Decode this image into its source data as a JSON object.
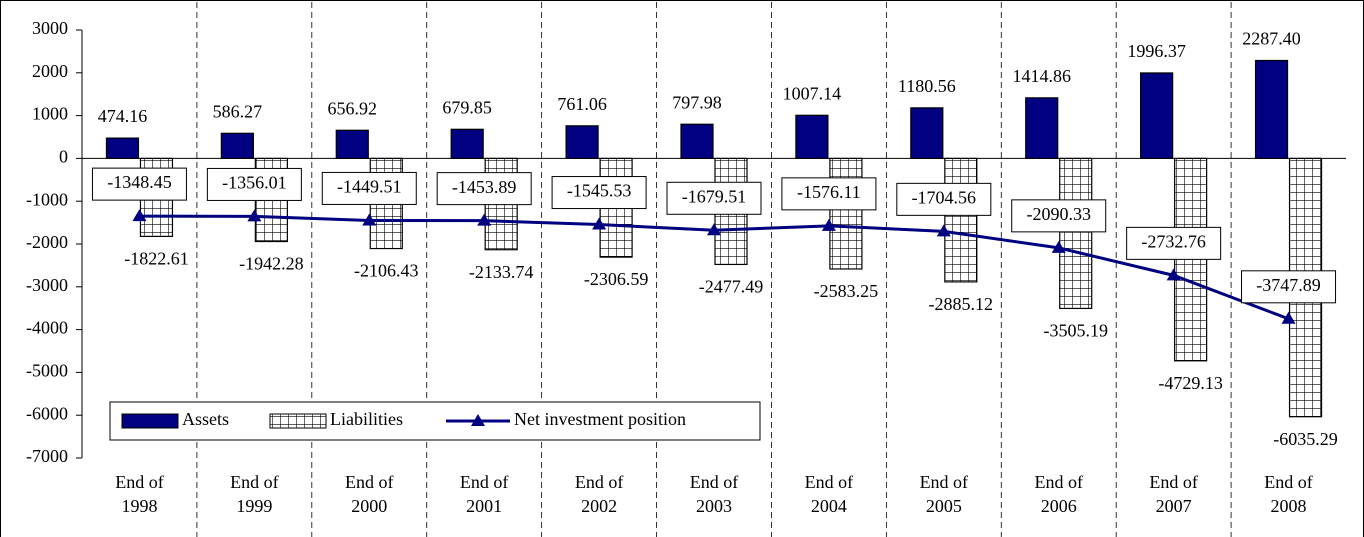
{
  "chart_data": {
    "type": "bar-line",
    "categories": [
      "End of 1998",
      "End of 1999",
      "End of 2000",
      "End of 2001",
      "End of 2002",
      "End of 2003",
      "End of 2004",
      "End of 2005",
      "End of 2006",
      "End of 2007",
      "End of 2008"
    ],
    "series": [
      {
        "name": "Assets",
        "type": "bar",
        "color": "#000080",
        "values": [
          474.16,
          586.27,
          656.92,
          679.85,
          761.06,
          797.98,
          1007.14,
          1180.56,
          1414.86,
          1996.37,
          2287.4
        ],
        "value_labels": [
          "474.16",
          "586.27",
          "656.92",
          "679.85",
          "761.06",
          "797.98",
          "1007.14",
          "1180.56",
          "1414.86",
          "1996.37",
          "2287.40"
        ]
      },
      {
        "name": "Liabilities",
        "type": "bar",
        "color": "#ffffff",
        "values": [
          -1822.61,
          -1942.28,
          -2106.43,
          -2133.74,
          -2306.59,
          -2477.49,
          -2583.25,
          -2885.12,
          -3505.19,
          -4729.13,
          -6035.29
        ]
      },
      {
        "name": "Net investment position",
        "type": "line",
        "color": "#000080",
        "values": [
          -1348.45,
          -1356.01,
          -1449.51,
          -1453.89,
          -1545.53,
          -1679.51,
          -1576.11,
          -1704.56,
          -2090.33,
          -2732.76,
          -3747.89
        ]
      }
    ],
    "ylim": [
      -7000,
      3000
    ],
    "yticks": [
      3000,
      2000,
      1000,
      0,
      -1000,
      -2000,
      -3000,
      -4000,
      -5000,
      -6000,
      -7000
    ],
    "legend": "bottom-left"
  }
}
